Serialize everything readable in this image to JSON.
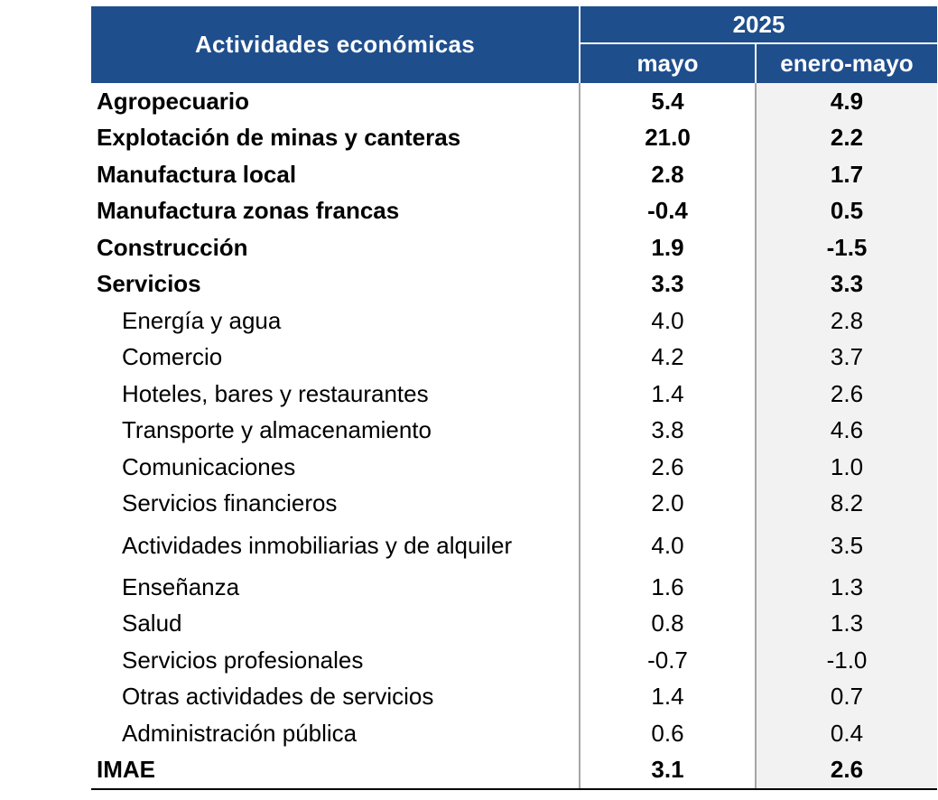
{
  "header": {
    "activities_label": "Actividades económicas",
    "year": "2025",
    "col_mayo": "mayo",
    "col_enero_mayo": "enero-mayo"
  },
  "rows": [
    {
      "label": "Agropecuario",
      "mayo": "5.4",
      "enero_mayo": "4.9",
      "bold": true
    },
    {
      "label": "Explotación de minas y canteras",
      "mayo": "21.0",
      "enero_mayo": "2.2",
      "bold": true
    },
    {
      "label": "Manufactura local",
      "mayo": "2.8",
      "enero_mayo": "1.7",
      "bold": true
    },
    {
      "label": "Manufactura zonas francas",
      "mayo": "-0.4",
      "enero_mayo": "0.5",
      "bold": true
    },
    {
      "label": "Construcción",
      "mayo": "1.9",
      "enero_mayo": "-1.5",
      "bold": true
    },
    {
      "label": "Servicios",
      "mayo": "3.3",
      "enero_mayo": "3.3",
      "bold": true
    },
    {
      "label": "Energía y agua",
      "mayo": "4.0",
      "enero_mayo": "2.8",
      "bold": false
    },
    {
      "label": "Comercio",
      "mayo": "4.2",
      "enero_mayo": "3.7",
      "bold": false
    },
    {
      "label": "Hoteles, bares y restaurantes",
      "mayo": "1.4",
      "enero_mayo": "2.6",
      "bold": false
    },
    {
      "label": "Transporte y almacenamiento",
      "mayo": "3.8",
      "enero_mayo": "4.6",
      "bold": false
    },
    {
      "label": "Comunicaciones",
      "mayo": "2.6",
      "enero_mayo": "1.0",
      "bold": false
    },
    {
      "label": "Servicios financieros",
      "mayo": "2.0",
      "enero_mayo": "8.2",
      "bold": false
    },
    {
      "label": "Actividades inmobiliarias y de alquiler",
      "mayo": "4.0",
      "enero_mayo": "3.5",
      "bold": false
    },
    {
      "label": "Enseñanza",
      "mayo": "1.6",
      "enero_mayo": "1.3",
      "bold": false
    },
    {
      "label": "Salud",
      "mayo": "0.8",
      "enero_mayo": "1.3",
      "bold": false
    },
    {
      "label": "Servicios profesionales",
      "mayo": "-0.7",
      "enero_mayo": "-1.0",
      "bold": false
    },
    {
      "label": "Otras actividades de servicios",
      "mayo": "1.4",
      "enero_mayo": "0.7",
      "bold": false
    },
    {
      "label": "Administración pública",
      "mayo": "0.6",
      "enero_mayo": "0.4",
      "bold": false
    },
    {
      "label": "IMAE",
      "mayo": "3.1",
      "enero_mayo": "2.6",
      "bold": true
    }
  ]
}
